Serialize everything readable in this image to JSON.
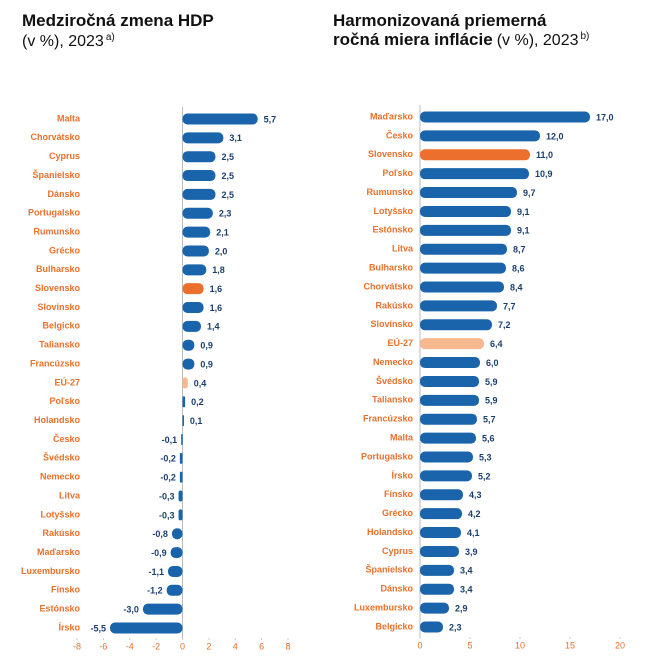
{
  "chart_data": [
    {
      "type": "bar",
      "orientation": "horizontal",
      "title": [
        "Medziročná zmena HDP"
      ],
      "subtitle": "(v %), 2023",
      "note_mark": "a)",
      "categories": [
        "Malta",
        "Chorvátsko",
        "Cyprus",
        "Španielsko",
        "Dánsko",
        "Portugalsko",
        "Rumunsko",
        "Grécko",
        "Bulharsko",
        "Slovensko",
        "Slovinsko",
        "Belgicko",
        "Taliansko",
        "Francúzsko",
        "EÚ-27",
        "Poľsko",
        "Holandsko",
        "Česko",
        "Švédsko",
        "Nemecko",
        "Litva",
        "Lotyšsko",
        "Rakúsko",
        "Maďarsko",
        "Luxembursko",
        "Fínsko",
        "Estónsko",
        "Írsko"
      ],
      "values": [
        5.7,
        3.1,
        2.5,
        2.5,
        2.5,
        2.3,
        2.1,
        2.0,
        1.8,
        1.6,
        1.6,
        1.4,
        0.9,
        0.9,
        0.4,
        0.2,
        0.1,
        -0.1,
        -0.2,
        -0.2,
        -0.3,
        -0.3,
        -0.8,
        -0.9,
        -1.1,
        -1.2,
        -3.0,
        -5.5
      ],
      "value_labels": [
        "5,7",
        "3,1",
        "2,5",
        "2,5",
        "2,5",
        "2,3",
        "2,1",
        "2,0",
        "1,8",
        "1,6",
        "1,6",
        "1,4",
        "0,9",
        "0,9",
        "0,4",
        "0,2",
        "0,1",
        "-0,1",
        "-0,2",
        "-0,2",
        "-0,3",
        "-0,3",
        "-0,8",
        "-0,9",
        "-1,1",
        "-1,2",
        "-3,0",
        "-5,5"
      ],
      "color": "#1a64ab",
      "highlight": {
        "Slovensko": "#ec6f2d",
        "EÚ-27": "#f6b88f"
      },
      "xlim": [
        -8,
        8
      ],
      "xticks": [
        -8,
        -6,
        -4,
        -2,
        0,
        2,
        4,
        6,
        8
      ]
    },
    {
      "type": "bar",
      "orientation": "horizontal",
      "title": [
        "Harmonizovaná priemerná",
        "ročná miera inflácie"
      ],
      "subtitle": "(v %), 2023",
      "note_mark": "b)",
      "categories": [
        "Maďarsko",
        "Česko",
        "Slovensko",
        "Poľsko",
        "Rumunsko",
        "Lotyšsko",
        "Estónsko",
        "Litva",
        "Bulharsko",
        "Chorvátsko",
        "Rakúsko",
        "Slovinsko",
        "EÚ-27",
        "Nemecko",
        "Švédsko",
        "Taliansko",
        "Francúzsko",
        "Malta",
        "Portugalsko",
        "Írsko",
        "Fínsko",
        "Grécko",
        "Holandsko",
        "Cyprus",
        "Španielsko",
        "Dánsko",
        "Luxembursko",
        "Belgicko"
      ],
      "values": [
        17.0,
        12.0,
        11.0,
        10.9,
        9.7,
        9.1,
        9.1,
        8.7,
        8.6,
        8.4,
        7.7,
        7.2,
        6.4,
        6.0,
        5.9,
        5.9,
        5.7,
        5.6,
        5.3,
        5.2,
        4.3,
        4.2,
        4.1,
        3.9,
        3.4,
        3.4,
        2.9,
        2.3
      ],
      "value_labels": [
        "17,0",
        "12,0",
        "11,0",
        "10,9",
        "9,7",
        "9,1",
        "9,1",
        "8,7",
        "8,6",
        "8,4",
        "7,7",
        "7,2",
        "6,4",
        "6,0",
        "5,9",
        "5,9",
        "5,7",
        "5,6",
        "5,3",
        "5,2",
        "4,3",
        "4,2",
        "4,1",
        "3,9",
        "3,4",
        "3,4",
        "2,9",
        "2,3"
      ],
      "color": "#1a64ab",
      "highlight": {
        "Slovensko": "#ec6f2d",
        "EÚ-27": "#f6b88f"
      },
      "xlim": [
        0,
        20
      ],
      "xticks": [
        0,
        5,
        10,
        15,
        20
      ]
    }
  ]
}
